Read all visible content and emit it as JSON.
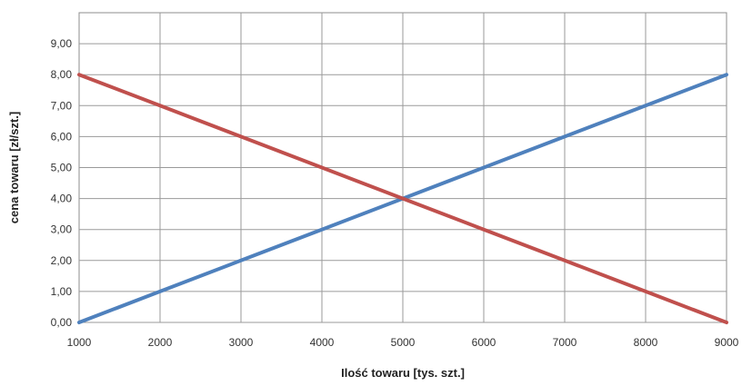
{
  "chart_data": {
    "type": "line",
    "title": "",
    "xlabel": "Ilość towaru [tys. szt.]",
    "ylabel": "cena towaru [zł/szt.]",
    "x": [
      1000,
      2000,
      3000,
      4000,
      5000,
      6000,
      7000,
      8000,
      9000
    ],
    "xlim": [
      1000,
      9000
    ],
    "ylim": [
      0,
      10
    ],
    "x_ticks": [
      "1000",
      "2000",
      "3000",
      "4000",
      "5000",
      "6000",
      "7000",
      "8000",
      "9000"
    ],
    "y_ticks": [
      "0,00",
      "1,00",
      "2,00",
      "3,00",
      "4,00",
      "5,00",
      "6,00",
      "7,00",
      "8,00",
      "9,00"
    ],
    "grid": true,
    "legend": "none",
    "series": [
      {
        "color": "#4f81bd",
        "values": [
          0,
          1,
          2,
          3,
          4,
          5,
          6,
          7,
          8
        ]
      },
      {
        "color": "#c0504d",
        "values": [
          8,
          7,
          6,
          5,
          4,
          3,
          2,
          1,
          0
        ]
      }
    ]
  }
}
